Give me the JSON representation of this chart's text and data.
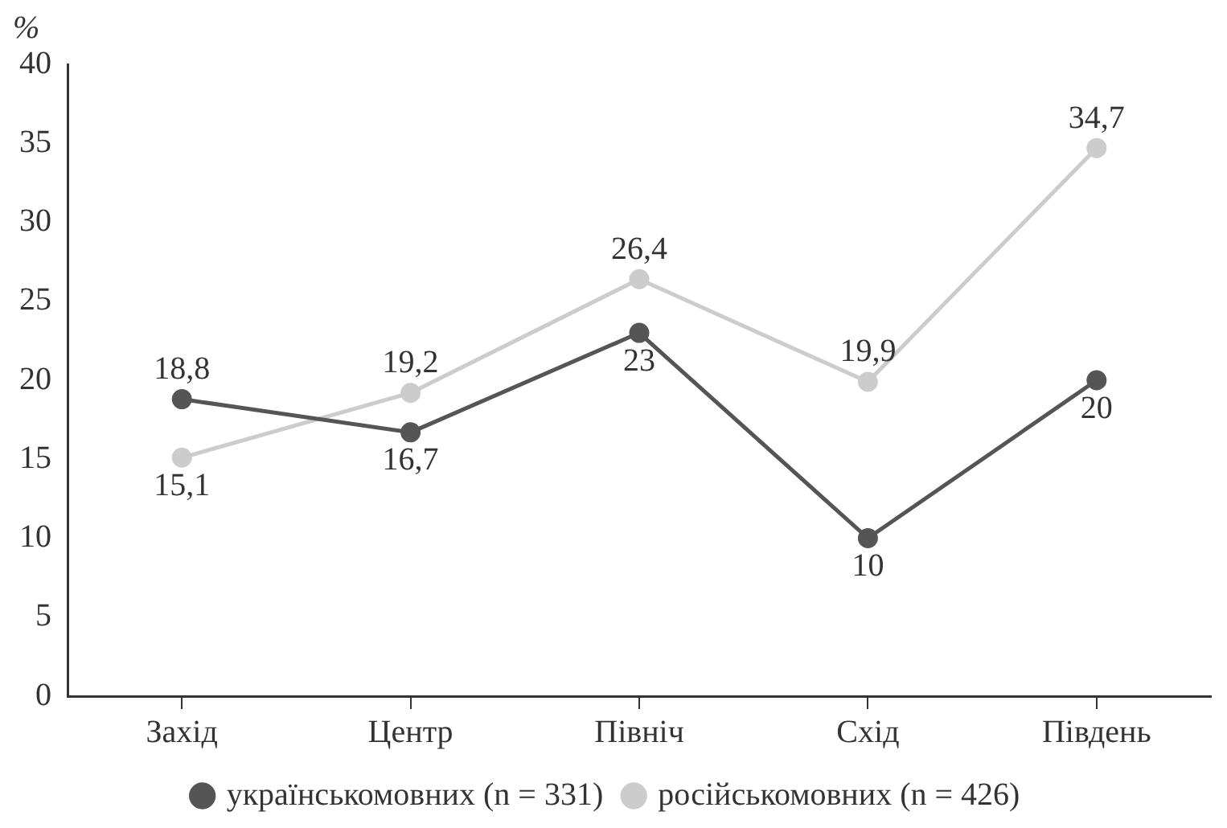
{
  "chart_data": {
    "type": "line",
    "ylabel": "%",
    "categories": [
      "Захід",
      "Центр",
      "Північ",
      "Схід",
      "Південь"
    ],
    "series": [
      {
        "name": "українськомовних (n = 331)",
        "color": "#555555",
        "values": [
          18.8,
          16.7,
          23,
          10,
          20
        ],
        "value_labels": [
          "18,8",
          "16,7",
          "23",
          "10",
          "20"
        ]
      },
      {
        "name": "російськомовних (n = 426)",
        "color": "#cccccc",
        "values": [
          15.1,
          19.2,
          26.4,
          19.9,
          34.7
        ],
        "value_labels": [
          "15,1",
          "19,2",
          "26,4",
          "19,9",
          "34,7"
        ]
      }
    ],
    "ylim": [
      0,
      40
    ],
    "yticks": [
      0,
      5,
      10,
      15,
      20,
      25,
      30,
      35,
      40
    ],
    "grid": false,
    "legend": "bottom",
    "marker": "circle",
    "line_style": "solid"
  }
}
